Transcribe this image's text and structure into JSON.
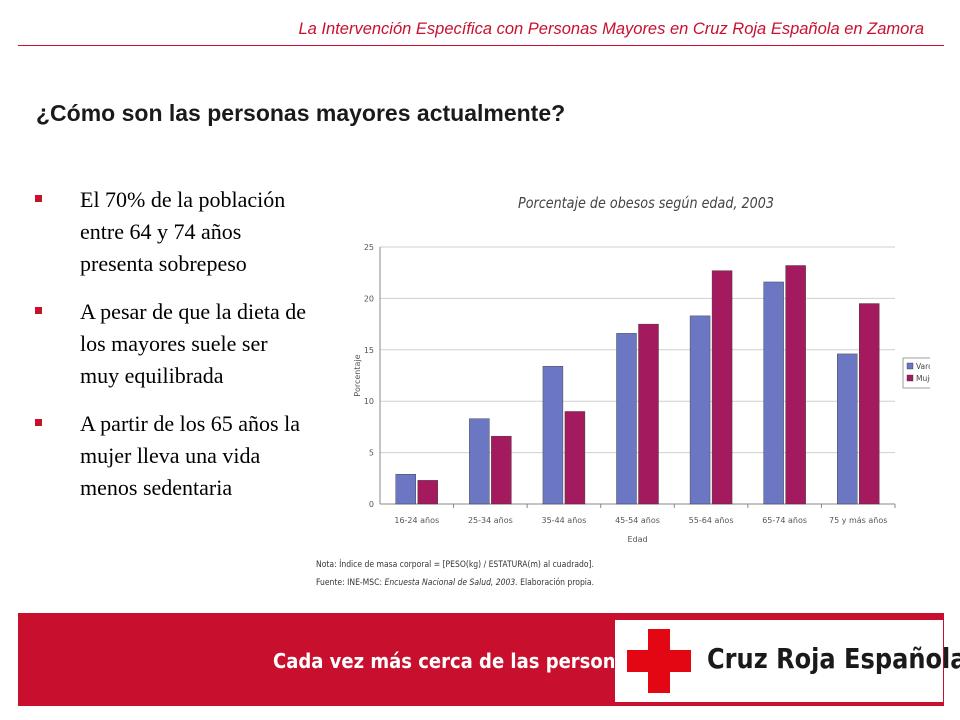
{
  "header": {
    "title": "La Intervención Específica con Personas Mayores  en Cruz Roja Española en Zamora"
  },
  "slide": {
    "title": "¿Cómo son las personas mayores actualmente?",
    "bullets": [
      "El 70% de la población entre 64 y 74 años presenta sobrepeso",
      "A pesar de que la dieta de los mayores suele ser muy equilibrada",
      "A partir de los 65 años la mujer lleva una vida menos sedentaria"
    ]
  },
  "notes": {
    "line1": "Nota:  Índice de masa corporal = [PESO(kg) / ESTATURA(m) al cuadrado].",
    "line2_prefix": "Fuente:  INE-MSC: ",
    "line2_source": "Encuesta Nacional de Salud, 2003.",
    "line2_suffix": " Elaboración propia."
  },
  "footer": {
    "tagline": "Cada vez más cerca de las personas",
    "logo_text": "Cruz Roja Española"
  },
  "colors": {
    "accent": "#c8102e",
    "varones": "#6b77c2",
    "mujeres": "#a31b5e"
  },
  "chart_data": {
    "type": "bar",
    "title": "Porcentaje de obesos según edad, 2003",
    "xlabel": "Edad",
    "ylabel": "Porcentaje",
    "ylim": [
      0,
      25
    ],
    "yticks": [
      0,
      5,
      10,
      15,
      20,
      25
    ],
    "grid": true,
    "legend_position": "right",
    "categories": [
      "16-24 años",
      "25-34 años",
      "35-44 años",
      "45-54 años",
      "55-64 años",
      "65-74 años",
      "75 y más años"
    ],
    "series": [
      {
        "name": "Varones",
        "values": [
          2.9,
          8.3,
          13.4,
          16.6,
          18.3,
          21.6,
          14.6
        ]
      },
      {
        "name": "Mujeres",
        "values": [
          2.3,
          6.6,
          9.0,
          17.5,
          22.7,
          23.2,
          19.5
        ]
      }
    ]
  }
}
